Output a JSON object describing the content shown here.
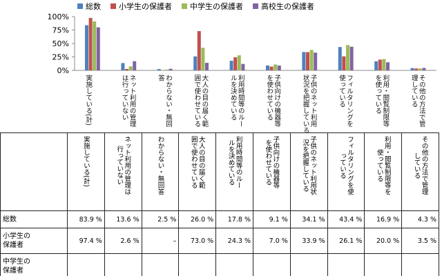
{
  "chart_data": {
    "type": "bar",
    "yticks": [
      "100%",
      "75%",
      "50%",
      "25%",
      "0%"
    ],
    "ylim": [
      0,
      100
    ],
    "legend_position": "top",
    "categories": [
      "実施している(計)",
      "ネット利用の管理\nは行っていない",
      "わからない・無回\n答",
      "大人の目の届く範\n囲で使わせている",
      "利用時間等のルー\nルを決めている",
      "子供向けの機器等\nを使わせている",
      "子供のネット利用\n状況を把握している",
      "フィルタリングを\n使っている",
      "利用・閲覧制限等\nを使っている",
      "その他の方法で管\n理している"
    ],
    "series": [
      {
        "name": "総数",
        "color": "#4f81bd",
        "values": [
          83.9,
          13.6,
          2.5,
          26.0,
          17.8,
          9.1,
          34.1,
          43.4,
          16.9,
          4.3
        ]
      },
      {
        "name": "小学生の保護者",
        "color": "#c0504d",
        "values": [
          97.4,
          2.6,
          0,
          73.0,
          24.3,
          7.0,
          33.9,
          26.1,
          20.0,
          3.5
        ]
      },
      {
        "name": "中学生の保護者",
        "color": "#9bbb59",
        "values": [
          91.0,
          7.5,
          1.5,
          42.0,
          28.0,
          11.0,
          38.0,
          47.0,
          21.0,
          3.6
        ]
      },
      {
        "name": "高校生の保護者",
        "color": "#8064a2",
        "values": [
          80.0,
          17.0,
          3.0,
          14.0,
          12.0,
          9.0,
          33.0,
          44.0,
          15.0,
          4.5
        ]
      }
    ]
  },
  "table": {
    "headers": [
      "実施している(計)",
      "ネット利用の管理は\n行っていない",
      "わからない・無回答",
      "大人の目の届く範\n囲で使わせている",
      "利用時間等のルー\nルを決めている",
      "子供向けの機器等\nを使わせている",
      "子供のネット利用状\n況を把握している",
      "フィルタリングを使\nっている",
      "利用・閲覧制限等を\n使っている",
      "その他の方法で管理\nしている"
    ],
    "rows": [
      {
        "label": "総数",
        "values": [
          "83.9 %",
          "13.6 %",
          "2.5 %",
          "26.0 %",
          "17.8 %",
          "9.1 %",
          "34.1 %",
          "43.4 %",
          "16.9 %",
          "4.3 %"
        ]
      },
      {
        "label": "小学生の\n保護者",
        "values": [
          "97.4 %",
          "2.6 %",
          "–",
          "73.0 %",
          "24.3 %",
          "7.0 %",
          "33.9 %",
          "26.1 %",
          "20.0 %",
          "3.5 %"
        ]
      },
      {
        "label": "中学生の\n保護者",
        "values": [
          "",
          "",
          "",
          "",
          "",
          "",
          "",
          "",
          "",
          ""
        ]
      }
    ]
  }
}
